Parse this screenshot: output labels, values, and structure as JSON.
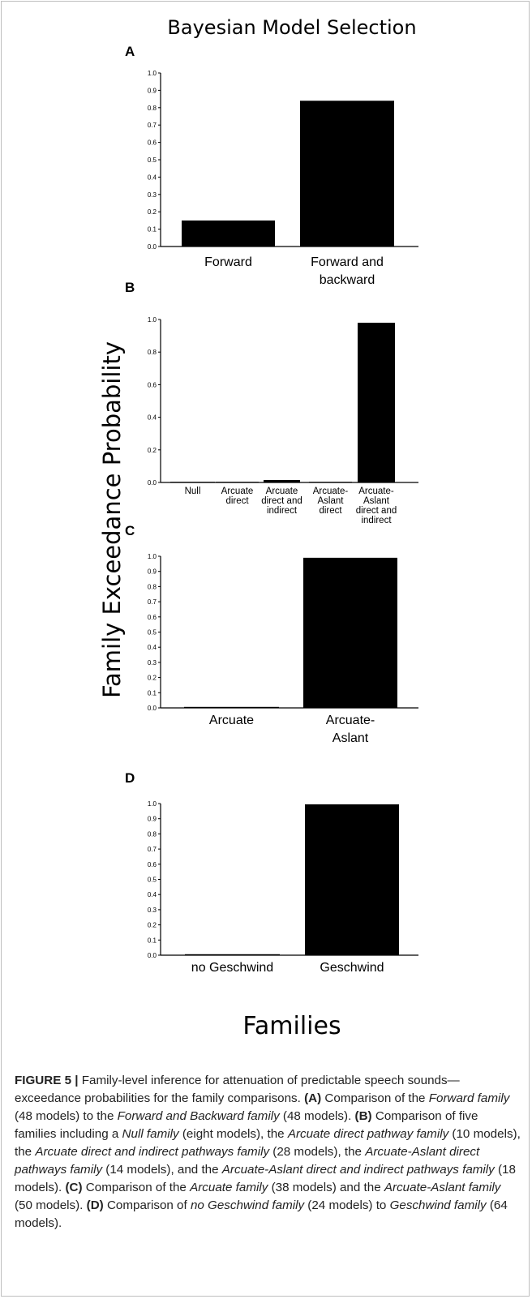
{
  "figure": {
    "title": "Bayesian Model Selection",
    "y_axis_label": "Family Exceedance Probability",
    "x_axis_label": "Families"
  },
  "chart_data": [
    {
      "panel": "A",
      "type": "bar",
      "categories": [
        [
          "Forward"
        ],
        [
          "Forward and",
          "backward"
        ]
      ],
      "values": [
        0.15,
        0.84
      ],
      "ylim": [
        0,
        1.0
      ],
      "yticks": [
        "0.0",
        "0.1",
        "0.2",
        "0.3",
        "0.4",
        "0.5",
        "0.6",
        "0.7",
        "0.8",
        "0.9",
        "1.0"
      ]
    },
    {
      "panel": "B",
      "type": "bar",
      "categories": [
        [
          "Null"
        ],
        [
          "Arcuate",
          "direct"
        ],
        [
          "Arcuate",
          "direct and",
          "indirect"
        ],
        [
          "Arcuate-",
          "Aslant",
          "direct"
        ],
        [
          "Arcuate-",
          "Aslant",
          "direct and",
          "indirect"
        ]
      ],
      "values": [
        0.0,
        0.0,
        0.015,
        0.0,
        0.98
      ],
      "ylim": [
        0,
        1.0
      ],
      "yticks": [
        "0.0",
        "0.2",
        "0.4",
        "0.6",
        "0.8",
        "1.0"
      ]
    },
    {
      "panel": "C",
      "type": "bar",
      "categories": [
        [
          "Arcuate"
        ],
        [
          "Arcuate-",
          "Aslant"
        ]
      ],
      "values": [
        0.003,
        0.99
      ],
      "ylim": [
        0,
        1.0
      ],
      "yticks": [
        "0.0",
        "0.1",
        "0.2",
        "0.3",
        "0.4",
        "0.5",
        "0.6",
        "0.7",
        "0.8",
        "0.9",
        "1.0"
      ]
    },
    {
      "panel": "D",
      "type": "bar",
      "categories": [
        [
          "no Geschwind"
        ],
        [
          "Geschwind"
        ]
      ],
      "values": [
        0.002,
        0.995
      ],
      "ylim": [
        0,
        1.0
      ],
      "yticks": [
        "0.0",
        "0.1",
        "0.2",
        "0.3",
        "0.4",
        "0.5",
        "0.6",
        "0.7",
        "0.8",
        "0.9",
        "1.0"
      ]
    }
  ],
  "caption": {
    "label": "FIGURE 5 |",
    "segments": [
      {
        "t": " Family-level inference for attenuation of predictable speech sounds—exceedance probabilities for the family comparisons. ",
        "s": "n"
      },
      {
        "t": "(A)",
        "s": "b"
      },
      {
        "t": " Comparison of the ",
        "s": "n"
      },
      {
        "t": "Forward family",
        "s": "i"
      },
      {
        "t": " (48 models) to the ",
        "s": "n"
      },
      {
        "t": "Forward and Backward family",
        "s": "i"
      },
      {
        "t": " (48 models). ",
        "s": "n"
      },
      {
        "t": "(B)",
        "s": "b"
      },
      {
        "t": " Comparison of five families including a ",
        "s": "n"
      },
      {
        "t": "Null family",
        "s": "i"
      },
      {
        "t": " (eight models), the ",
        "s": "n"
      },
      {
        "t": "Arcuate direct pathway family",
        "s": "i"
      },
      {
        "t": " (10 models), the ",
        "s": "n"
      },
      {
        "t": "Arcuate direct and indirect pathways family",
        "s": "i"
      },
      {
        "t": " (28 models), the ",
        "s": "n"
      },
      {
        "t": "Arcuate-Aslant direct pathways family",
        "s": "i"
      },
      {
        "t": " (14 models), and the ",
        "s": "n"
      },
      {
        "t": "Arcuate-Aslant direct and indirect pathways family",
        "s": "i"
      },
      {
        "t": " (18 models). ",
        "s": "n"
      },
      {
        "t": "(C)",
        "s": "b"
      },
      {
        "t": " Comparison of the ",
        "s": "n"
      },
      {
        "t": "Arcuate family",
        "s": "i"
      },
      {
        "t": " (38 models) and the ",
        "s": "n"
      },
      {
        "t": "Arcuate-Aslant family",
        "s": "i"
      },
      {
        "t": " (50 models). ",
        "s": "n"
      },
      {
        "t": "(D)",
        "s": "b"
      },
      {
        "t": " Comparison of ",
        "s": "n"
      },
      {
        "t": "no Geschwind family",
        "s": "i"
      },
      {
        "t": " (24 models) to ",
        "s": "n"
      },
      {
        "t": "Geschwind family",
        "s": "i"
      },
      {
        "t": " (64 models).",
        "s": "n"
      }
    ]
  }
}
